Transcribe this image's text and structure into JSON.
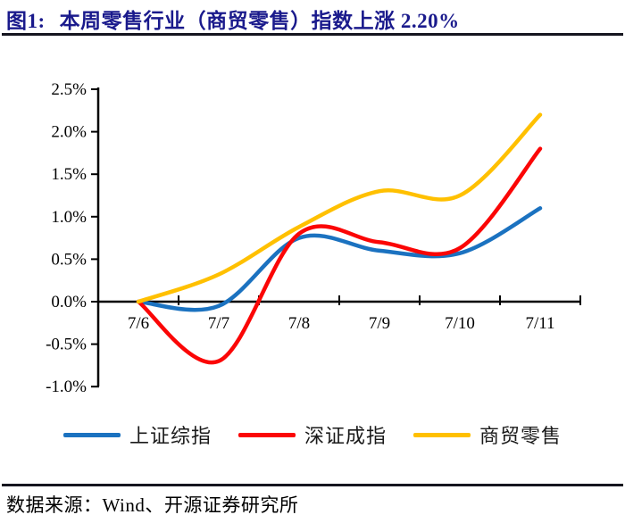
{
  "title": {
    "label": "图1:",
    "text": "本周零售行业（商贸零售）指数上涨 2.20%"
  },
  "footer": {
    "source": "数据来源：Wind、开源证券研究所"
  },
  "colors": {
    "title": "#1A1A8C",
    "axis": "#000000",
    "rule": "#15151F"
  },
  "chart_data": {
    "type": "line",
    "title": "本周零售行业（商贸零售）指数上涨 2.20%",
    "categories": [
      "7/6",
      "7/7",
      "7/8",
      "7/9",
      "7/10",
      "7/11"
    ],
    "series": [
      {
        "name": "上证综指",
        "color": "#1B72C0",
        "values": [
          0.0,
          -0.05,
          0.75,
          0.6,
          0.57,
          1.1
        ]
      },
      {
        "name": "深证成指",
        "color": "#FB0606",
        "values": [
          0.0,
          -0.7,
          0.8,
          0.7,
          0.63,
          1.8
        ]
      },
      {
        "name": "商贸零售",
        "color": "#FFC000",
        "values": [
          0.0,
          0.32,
          0.88,
          1.3,
          1.25,
          2.2
        ]
      }
    ],
    "y_ticks": {
      "labels": [
        "2.5%",
        "2.0%",
        "1.5%",
        "1.0%",
        "0.5%",
        "0.0%",
        "-0.5%",
        "-1.0%"
      ],
      "values": [
        2.5,
        2.0,
        1.5,
        1.0,
        0.5,
        0.0,
        -0.5,
        -1.0
      ]
    },
    "ylim": [
      -1.0,
      2.5
    ],
    "xlabel": "",
    "ylabel": "",
    "unit": "%",
    "grid": false,
    "legend_position": "bottom"
  }
}
